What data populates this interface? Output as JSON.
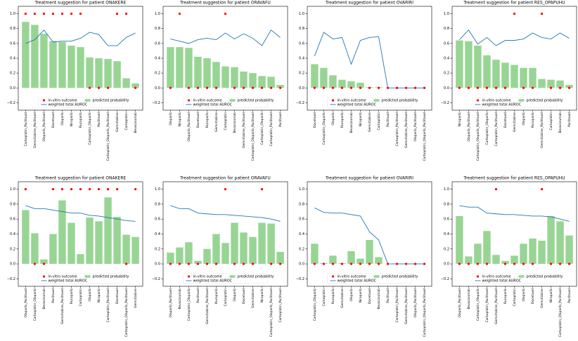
{
  "chart_data": [
    {
      "type": "bar",
      "title": "Treatment suggestion for patient ONAKERE",
      "categories": [
        "Carboplatin_Paclitaxel",
        "Gemcitabine_Paclitaxel",
        "Olaparib_Paclitaxel",
        "Docetaxel",
        "Olaparib",
        "Niraparib",
        "Rucaparib",
        "Carboplatin_Olaparib",
        "Paclitaxel",
        "Carboplatin_Olaparib_Paclitaxel",
        "Gemcitabine",
        "Carboplatin",
        "Bevacizumab"
      ],
      "series": [
        {
          "name": "predicted probability",
          "color": "#98d594",
          "values": [
            0.89,
            0.85,
            0.73,
            0.63,
            0.62,
            0.57,
            0.55,
            0.41,
            0.4,
            0.39,
            0.36,
            0.13,
            0.06
          ]
        },
        {
          "name": "in-vitro outcome",
          "color": "#ff0000",
          "values": [
            1,
            1,
            1,
            1,
            1,
            1,
            1,
            0,
            0,
            0,
            1,
            1,
            0
          ]
        },
        {
          "name": "weighted total AUROC",
          "color": "#1f77b4",
          "values": [
            0.6,
            0.65,
            0.78,
            0.62,
            0.63,
            0.63,
            0.67,
            0.75,
            0.72,
            0.57,
            0.57,
            0.68,
            0.74
          ]
        }
      ],
      "ylim": [
        -0.3,
        1.1
      ],
      "yticks": [
        {
          "value": -0.2,
          "label": "−0.2"
        },
        {
          "value": 0,
          "label": "0.0"
        },
        0.2,
        0.4,
        0.6,
        0.8,
        {
          "value": 1,
          "label": "1.0"
        }
      ],
      "legend": "lower center"
    },
    {
      "type": "bar",
      "title": "Treatment suggestion for patient ORAVAFU",
      "categories": [
        "Olaparib",
        "Niraparib",
        "Olaparib_Paclitaxel",
        "Docetaxel",
        "Rucaparib",
        "Gemcitabine",
        "Carboplatin",
        "Bevacizumab",
        "Gemcitabine_Paclitaxel",
        "Carboplatin_Olaparib_Paclitaxel",
        "Carboplatin_Olaparib",
        "Carboplatin_Paclitaxel",
        "Paclitaxel"
      ],
      "series": [
        {
          "name": "predicted probability",
          "color": "#98d594",
          "values": [
            0.55,
            0.55,
            0.54,
            0.42,
            0.4,
            0.35,
            0.29,
            0.28,
            0.22,
            0.2,
            0.16,
            0.15,
            0.04
          ]
        },
        {
          "name": "in-vitro outcome",
          "color": "#ff0000",
          "values": [
            0,
            1,
            0,
            0,
            0,
            0,
            1,
            0,
            0,
            0,
            0,
            0,
            0
          ]
        },
        {
          "name": "weighted total AUROC",
          "color": "#1f77b4",
          "values": [
            0.66,
            0.63,
            0.6,
            0.65,
            0.67,
            0.65,
            0.74,
            0.66,
            0.73,
            0.67,
            0.57,
            0.78,
            0.68
          ]
        }
      ],
      "ylim": [
        -0.3,
        1.1
      ],
      "yticks": [
        {
          "value": -0.2,
          "label": "−0.2"
        },
        {
          "value": 0,
          "label": "0.0"
        },
        0.2,
        0.4,
        0.6,
        0.8,
        {
          "value": 1,
          "label": "1.0"
        }
      ],
      "legend": "lower center"
    },
    {
      "type": "bar",
      "title": "Treatment suggestion for patient OVARIRI",
      "categories": [
        "Docetaxel",
        "Carboplatin_Olaparib",
        "Olaparib",
        "Rucaparib",
        "Bevacizumab",
        "Niraparib",
        "Gemcitabine",
        "Carboplatin",
        "Paclitaxel",
        "Carboplatin_Paclitaxel",
        "Gemcitabine_Paclitaxel",
        "Olaparib_Paclitaxel",
        "Carboplatin_Olaparib_Paclitaxel"
      ],
      "series": [
        {
          "name": "predicted probability",
          "color": "#98d594",
          "values": [
            0.32,
            0.27,
            0.17,
            0.11,
            0.09,
            0.07,
            0.01,
            0.01,
            0,
            0,
            0,
            0,
            0
          ]
        },
        {
          "name": "in-vitro outcome",
          "color": "#ff0000",
          "values": [
            0,
            0,
            0,
            0,
            0,
            0,
            0,
            0,
            0,
            0,
            0,
            0,
            0
          ]
        },
        {
          "name": "weighted total AUROC",
          "color": "#1f77b4",
          "values": [
            0.43,
            0.75,
            0.66,
            0.68,
            0.32,
            0.64,
            0.68,
            0.69,
            0,
            0,
            0,
            0,
            0
          ]
        }
      ],
      "ylim": [
        -0.3,
        1.1
      ],
      "yticks": [
        {
          "value": -0.2,
          "label": "−0.2"
        },
        {
          "value": 0,
          "label": "0.0"
        },
        0.2,
        0.4,
        0.6,
        0.8,
        {
          "value": 1,
          "label": "1.0"
        }
      ],
      "legend": "lower center"
    },
    {
      "type": "bar",
      "title": "Treatment suggestion for patient RES_OPAPUHU",
      "categories": [
        "Niraparib",
        "Olaparib_Paclitaxel",
        "Carboplatin_Olaparib_Paclitaxel",
        "Carboplatin_Olaparib",
        "Carboplatin_Paclitaxel",
        "Docetaxel",
        "Gemcitabine",
        "Olaparib",
        "Rucaparib",
        "Gemcitabine_Paclitaxel",
        "Carboplatin",
        "Bevacizumab",
        "Paclitaxel"
      ],
      "series": [
        {
          "name": "predicted probability",
          "color": "#98d594",
          "values": [
            0.64,
            0.63,
            0.57,
            0.44,
            0.38,
            0.34,
            0.31,
            0.27,
            0.27,
            0.12,
            0.11,
            0.1,
            0.04
          ]
        },
        {
          "name": "in-vitro outcome",
          "color": "#ff0000",
          "values": [
            0,
            0,
            0,
            0,
            0,
            0,
            1,
            0,
            0,
            1,
            0,
            0,
            0
          ]
        },
        {
          "name": "weighted total AUROC",
          "color": "#1f77b4",
          "values": [
            0.65,
            0.78,
            0.59,
            0.68,
            0.57,
            0.64,
            0.64,
            0.66,
            0.74,
            0.68,
            0.66,
            0.74,
            0.67
          ]
        }
      ],
      "ylim": [
        -0.3,
        1.1
      ],
      "yticks": [
        {
          "value": -0.2,
          "label": "−0.2"
        },
        {
          "value": 0,
          "label": "0.0"
        },
        0.2,
        0.4,
        0.6,
        0.8,
        {
          "value": 1,
          "label": "1.0"
        }
      ],
      "legend": "lower center"
    },
    {
      "type": "bar",
      "title": "Treatment suggestion for patient ONAKERE",
      "categories": [
        "Olaparib_Paclitaxel",
        "Carboplatin_Olaparib",
        "Bevacizumab",
        "Paclitaxel",
        "Gemcitabine_Paclitaxel",
        "Rucaparib",
        "Carboplatin",
        "Olaparib",
        "Niraparib",
        "Carboplatin_Paclitaxel",
        "Docetaxel",
        "Carboplatin_Olaparib_Paclitaxel",
        "Gemcitabine"
      ],
      "series": [
        {
          "name": "predicted probability",
          "color": "#98d594",
          "values": [
            0.72,
            0.41,
            0.06,
            0.4,
            0.85,
            0.55,
            0.13,
            0.62,
            0.57,
            0.89,
            0.63,
            0.39,
            0.36
          ]
        },
        {
          "name": "in-vitro outcome",
          "color": "#ff0000",
          "values": [
            1,
            0,
            0,
            1,
            1,
            1,
            1,
            1,
            1,
            1,
            1,
            0,
            1
          ]
        },
        {
          "name": "weighted total AUROC",
          "color": "#1f77b4",
          "values": [
            0.78,
            0.74,
            0.74,
            0.72,
            0.7,
            0.68,
            0.68,
            0.65,
            0.64,
            0.62,
            0.6,
            0.58,
            0.57
          ]
        }
      ],
      "ylim": [
        -0.3,
        1.1
      ],
      "yticks": [
        {
          "value": -0.2,
          "label": "−0.2"
        },
        {
          "value": 0,
          "label": "0.0"
        },
        0.2,
        0.4,
        0.6,
        0.8,
        {
          "value": 1,
          "label": "1.0"
        }
      ],
      "legend": "lower center"
    },
    {
      "type": "bar",
      "title": "Treatment suggestion for patient ORAVAFU",
      "categories": [
        "Olaparib_Paclitaxel",
        "Bevacizumab",
        "Carboplatin_Olaparib",
        "Paclitaxel",
        "Gemcitabine_Paclitaxel",
        "Rucaparib",
        "Carboplatin",
        "Olaparib",
        "Docetaxel",
        "Gemcitabine",
        "Niraparib",
        "Carboplatin_Olaparib_Paclitaxel",
        "Carboplatin_Paclitaxel"
      ],
      "series": [
        {
          "name": "predicted probability",
          "color": "#98d594",
          "values": [
            0.15,
            0.22,
            0.29,
            0.04,
            0.2,
            0.4,
            0.28,
            0.55,
            0.42,
            0.36,
            0.55,
            0.54,
            0.16
          ]
        },
        {
          "name": "in-vitro outcome",
          "color": "#ff0000",
          "values": [
            0,
            0,
            0,
            0,
            0,
            0,
            1,
            0,
            0,
            0,
            1,
            0,
            0
          ]
        },
        {
          "name": "weighted total AUROC",
          "color": "#1f77b4",
          "values": [
            0.78,
            0.74,
            0.74,
            0.68,
            0.67,
            0.66,
            0.66,
            0.65,
            0.64,
            0.63,
            0.62,
            0.6,
            0.57
          ]
        }
      ],
      "ylim": [
        -0.3,
        1.1
      ],
      "yticks": [
        {
          "value": -0.2,
          "label": "−0.2"
        },
        {
          "value": 0,
          "label": "0.0"
        },
        0.2,
        0.4,
        0.6,
        0.8,
        {
          "value": 1,
          "label": "1.0"
        }
      ],
      "legend": "lower center"
    },
    {
      "type": "bar",
      "title": "Treatment suggestion for patient OVARIRI",
      "categories": [
        "Carboplatin_Olaparib",
        "Carboplatin",
        "Rucaparib",
        "Gemcitabine",
        "Olaparib",
        "Niraparib",
        "Docetaxel",
        "Bevacizumab",
        "Paclitaxel",
        "Carboplatin_Paclitaxel",
        "Gemcitabine_Paclitaxel",
        "Olaparib_Paclitaxel",
        "Carboplatin_Olaparib_Paclitaxel"
      ],
      "series": [
        {
          "name": "predicted probability",
          "color": "#98d594",
          "values": [
            0.27,
            0.01,
            0.11,
            0.01,
            0.17,
            0.07,
            0.32,
            0.09,
            0,
            0,
            0,
            0,
            0
          ]
        },
        {
          "name": "in-vitro outcome",
          "color": "#ff0000",
          "values": [
            0,
            0,
            0,
            0,
            0,
            0,
            0,
            0,
            0,
            0,
            0,
            0,
            0
          ]
        },
        {
          "name": "weighted total AUROC",
          "color": "#1f77b4",
          "values": [
            0.75,
            0.69,
            0.68,
            0.68,
            0.66,
            0.64,
            0.43,
            0.32,
            0,
            0,
            0,
            0,
            0
          ]
        }
      ],
      "ylim": [
        -0.3,
        1.1
      ],
      "yticks": [
        {
          "value": -0.2,
          "label": "−0.2"
        },
        {
          "value": 0,
          "label": "0.0"
        },
        0.2,
        0.4,
        0.6,
        0.8,
        {
          "value": 1,
          "label": "1.0"
        }
      ],
      "legend": "lower center"
    },
    {
      "type": "bar",
      "title": "Treatment suggestion for patient RES_OPAPUHU",
      "categories": [
        "Olaparib_Paclitaxel",
        "Bevacizumab",
        "Carboplatin_Olaparib",
        "Carboplatin_Paclitaxel",
        "Gemcitabine_Paclitaxel",
        "Rucaparib",
        "Carboplatin",
        "Olaparib",
        "Docetaxel",
        "Gemcitabine",
        "Niraparib",
        "Carboplatin_Olaparib_Paclitaxel",
        "Paclitaxel"
      ],
      "series": [
        {
          "name": "predicted probability",
          "color": "#98d594",
          "values": [
            0.64,
            0.1,
            0.27,
            0.44,
            0.12,
            0.04,
            0.11,
            0.27,
            0.34,
            0.31,
            0.64,
            0.57,
            0.38
          ]
        },
        {
          "name": "in-vitro outcome",
          "color": "#ff0000",
          "values": [
            0,
            0,
            0,
            0,
            1,
            0,
            0,
            0,
            0,
            1,
            0,
            0,
            0
          ]
        },
        {
          "name": "weighted total AUROC",
          "color": "#1f77b4",
          "values": [
            0.78,
            0.76,
            0.76,
            0.68,
            0.67,
            0.66,
            0.66,
            0.65,
            0.64,
            0.64,
            0.63,
            0.6,
            0.57
          ]
        }
      ],
      "ylim": [
        -0.3,
        1.1
      ],
      "yticks": [
        {
          "value": -0.2,
          "label": "−0.2"
        },
        {
          "value": 0,
          "label": "0.0"
        },
        0.2,
        0.4,
        0.6,
        0.8,
        {
          "value": 1,
          "label": "1.0"
        }
      ],
      "legend": "lower center"
    }
  ]
}
